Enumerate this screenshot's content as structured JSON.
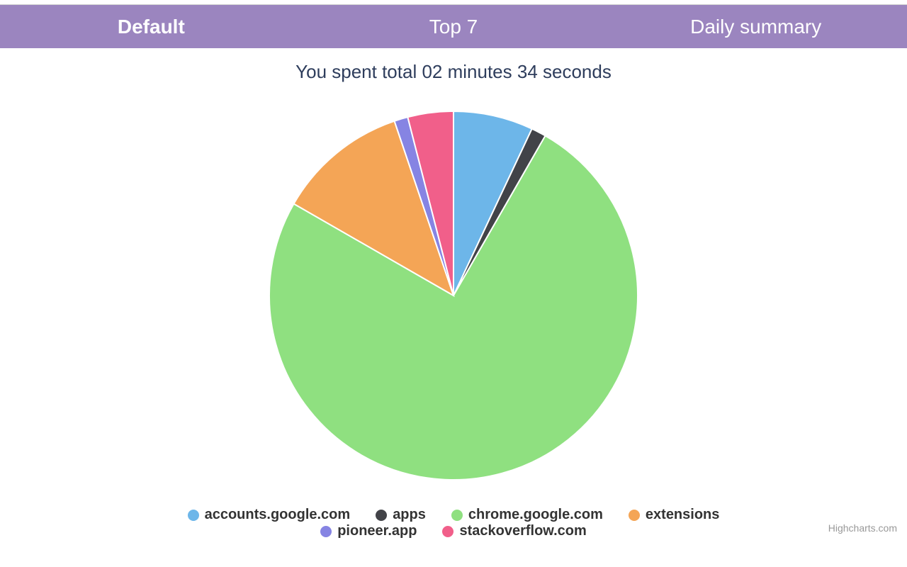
{
  "tabs": {
    "bar_color": "#9b85bf",
    "text_color": "#ffffff",
    "active_index": 0,
    "items": [
      {
        "label": "Default"
      },
      {
        "label": "Top 7"
      },
      {
        "label": "Daily summary"
      }
    ]
  },
  "chart": {
    "type": "pie",
    "title": "You spent total 02 minutes 34 seconds",
    "title_color": "#2e3d5c",
    "title_fontsize": 26,
    "background_color": "#ffffff",
    "stroke_color": "#ffffff",
    "stroke_width": 2,
    "radius": 260,
    "start_angle_deg": 0,
    "slices": [
      {
        "name": "accounts.google.com",
        "value": 7.0,
        "color": "#6db6e9"
      },
      {
        "name": "apps",
        "value": 1.3,
        "color": "#424348"
      },
      {
        "name": "chrome.google.com",
        "value": 75.0,
        "color": "#8fe080"
      },
      {
        "name": "extensions",
        "value": 11.5,
        "color": "#f4a556"
      },
      {
        "name": "pioneer.app",
        "value": 1.2,
        "color": "#8684e3"
      },
      {
        "name": "stackoverflow.com",
        "value": 4.0,
        "color": "#f15f8a"
      }
    ]
  },
  "legend": {
    "font_color": "#333333",
    "items": [
      {
        "label": "accounts.google.com",
        "color": "#6db6e9"
      },
      {
        "label": "apps",
        "color": "#424348"
      },
      {
        "label": "chrome.google.com",
        "color": "#8fe080"
      },
      {
        "label": "extensions",
        "color": "#f4a556"
      },
      {
        "label": "pioneer.app",
        "color": "#8684e3"
      },
      {
        "label": "stackoverflow.com",
        "color": "#f15f8a"
      }
    ]
  },
  "credits": {
    "label": "Highcharts.com",
    "color": "#999999"
  }
}
